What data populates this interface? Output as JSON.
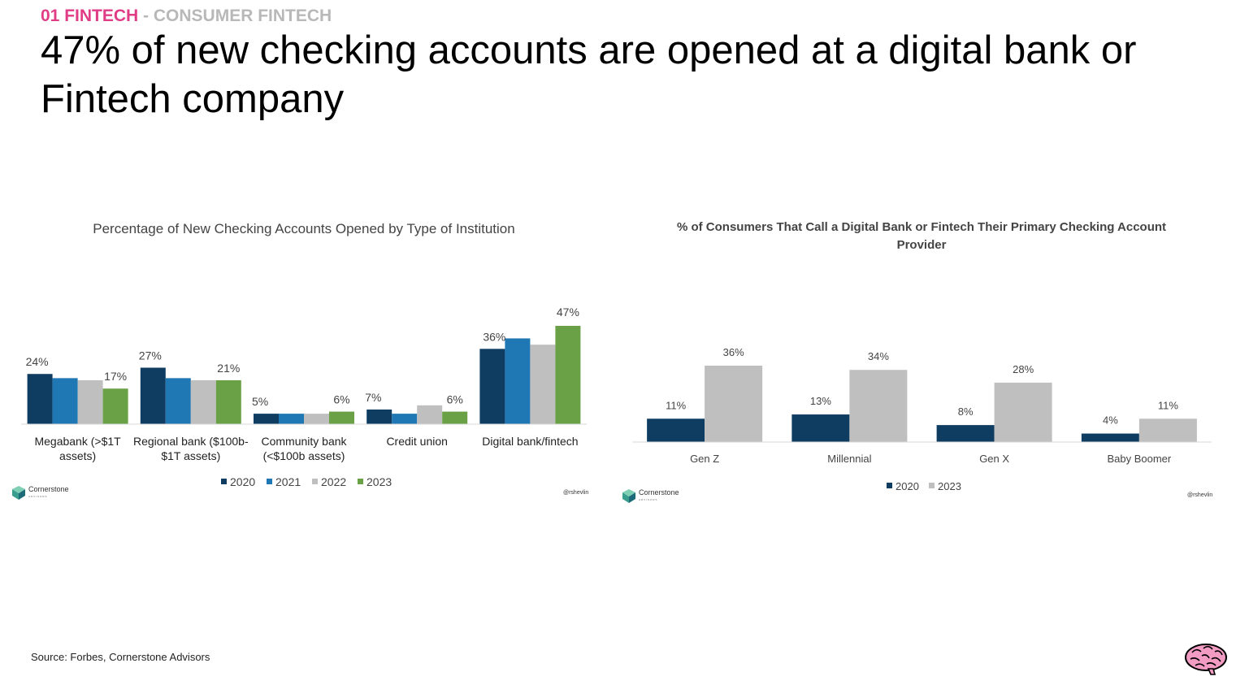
{
  "header": {
    "section": "01 FINTECH",
    "separator": " - ",
    "subsection": "CONSUMER FINTECH",
    "headline": "47% of new checking accounts are opened at a digital bank or Fintech company"
  },
  "footer": {
    "source": "Source: Forbes, Cornerstone Advisors"
  },
  "logos": {
    "brand": "Cornerstone",
    "brand_sub": "ADVISORS",
    "credit": "@rshevlin"
  },
  "icons": {
    "cornerstone_mark": "cornerstone-logo-icon",
    "brain": "brain-icon"
  },
  "colors": {
    "kicker_pink": "#e03d86",
    "kicker_grey": "#b8b8b8",
    "s2020": "#0f3d62",
    "s2021": "#1f77b4",
    "s2022": "#bfbfbf",
    "s2023": "#6aa146",
    "grey2023": "#bfbfbf"
  },
  "chart_data": [
    {
      "type": "bar",
      "title": "Percentage of New Checking Accounts Opened by Type of Institution",
      "categories": [
        [
          "Megabank (>$1T",
          "assets)"
        ],
        [
          "Regional bank ($100b-",
          "$1T assets)"
        ],
        [
          "Community bank",
          "(<$100b assets)"
        ],
        [
          "Credit union"
        ],
        [
          "Digital bank/fintech"
        ]
      ],
      "series": [
        {
          "name": "2020",
          "values": [
            24,
            27,
            5,
            7,
            36
          ]
        },
        {
          "name": "2021",
          "values": [
            22,
            22,
            5,
            5,
            41
          ]
        },
        {
          "name": "2022",
          "values": [
            21,
            21,
            5,
            9,
            38
          ]
        },
        {
          "name": "2023",
          "values": [
            17,
            21,
            6,
            6,
            47
          ]
        }
      ],
      "data_labels": [
        {
          "series": 0,
          "category": 0,
          "text": "24%"
        },
        {
          "series": 3,
          "category": 0,
          "text": "17%"
        },
        {
          "series": 0,
          "category": 1,
          "text": "27%"
        },
        {
          "series": 3,
          "category": 1,
          "text": "21%"
        },
        {
          "series": 0,
          "category": 2,
          "text": "5%"
        },
        {
          "series": 3,
          "category": 2,
          "text": "6%"
        },
        {
          "series": 0,
          "category": 3,
          "text": "7%"
        },
        {
          "series": 3,
          "category": 3,
          "text": "6%"
        },
        {
          "series": 0,
          "category": 4,
          "text": "36%"
        },
        {
          "series": 3,
          "category": 4,
          "text": "47%"
        }
      ],
      "ylim": [
        0,
        50
      ],
      "grid": false,
      "legend": "bottom"
    },
    {
      "type": "bar",
      "title": "% of Consumers That Call a Digital Bank or Fintech Their Primary Checking Account Provider",
      "categories": [
        "Gen Z",
        "Millennial",
        "Gen X",
        "Baby Boomer"
      ],
      "series": [
        {
          "name": "2020",
          "values": [
            11,
            13,
            8,
            4
          ]
        },
        {
          "name": "2023",
          "values": [
            36,
            34,
            28,
            11
          ]
        }
      ],
      "data_labels": [
        {
          "series": 0,
          "category": 0,
          "text": "11%"
        },
        {
          "series": 1,
          "category": 0,
          "text": "36%"
        },
        {
          "series": 0,
          "category": 1,
          "text": "13%"
        },
        {
          "series": 1,
          "category": 1,
          "text": "34%"
        },
        {
          "series": 0,
          "category": 2,
          "text": "8%"
        },
        {
          "series": 1,
          "category": 2,
          "text": "28%"
        },
        {
          "series": 0,
          "category": 3,
          "text": "4%"
        },
        {
          "series": 1,
          "category": 3,
          "text": "11%"
        }
      ],
      "ylim": [
        0,
        40
      ],
      "grid": false,
      "legend": "bottom"
    }
  ]
}
